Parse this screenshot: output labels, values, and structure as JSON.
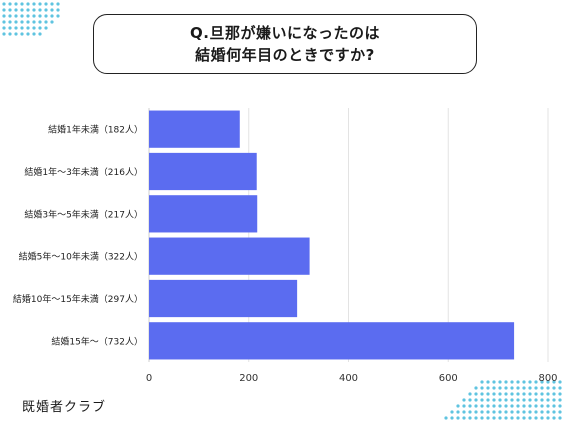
{
  "title": {
    "line1": "Q.旦那が嫌いになったのは",
    "line2": "結婚何年目のときですか?"
  },
  "brand": "既婚者クラブ",
  "colors": {
    "bar": "#5b6cf0",
    "grid": "#e3e3e3",
    "dots": "#5fc4e0"
  },
  "chart_data": {
    "type": "bar",
    "orientation": "horizontal",
    "categories": [
      "結婚1年未満（182人）",
      "結婚1年～3年未満（216人）",
      "結婚3年～5年未満（217人）",
      "結婚5年～10年未満（322人）",
      "結婚10年～15年未満（297人）",
      "結婚15年～（732人）"
    ],
    "values": [
      182,
      216,
      217,
      322,
      297,
      732
    ],
    "xlim": [
      0,
      800
    ],
    "xticks": [
      0,
      200,
      400,
      600,
      800
    ],
    "grid": true
  }
}
